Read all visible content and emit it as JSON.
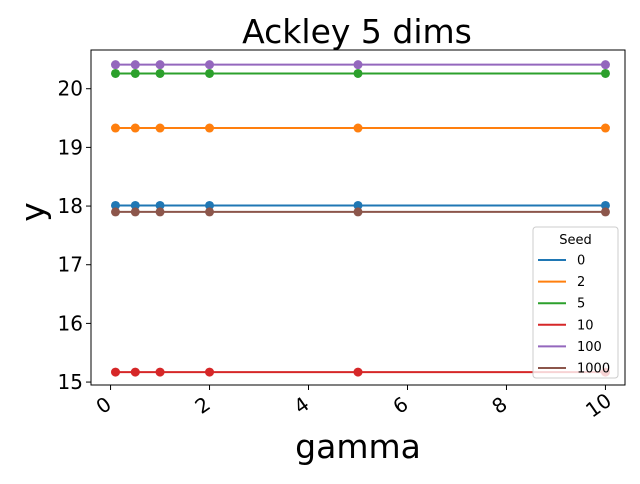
{
  "chart_data": {
    "type": "line",
    "title": "Ackley 5 dims",
    "xlabel": "gamma",
    "ylabel": "y",
    "x": [
      0.1,
      0.5,
      1,
      2,
      5,
      10
    ],
    "xlim": [
      -0.395,
      10.395
    ],
    "ylim": [
      14.95,
      20.66
    ],
    "xticks": [
      0,
      2,
      4,
      6,
      8,
      10
    ],
    "yticks": [
      15,
      16,
      17,
      18,
      19,
      20
    ],
    "grid": false,
    "legend": {
      "title": "Seed",
      "placement": "lower right"
    },
    "series": [
      {
        "name": "0",
        "color": "#1f77b4",
        "values": [
          18.01,
          18.01,
          18.01,
          18.01,
          18.01,
          18.01
        ]
      },
      {
        "name": "2",
        "color": "#ff7f0e",
        "values": [
          19.33,
          19.33,
          19.33,
          19.33,
          19.33,
          19.33
        ]
      },
      {
        "name": "5",
        "color": "#2ca02c",
        "values": [
          20.26,
          20.26,
          20.26,
          20.26,
          20.26,
          20.26
        ]
      },
      {
        "name": "10",
        "color": "#d62728",
        "values": [
          15.17,
          15.17,
          15.17,
          15.17,
          15.17,
          15.17
        ]
      },
      {
        "name": "100",
        "color": "#9467bd",
        "values": [
          20.41,
          20.41,
          20.41,
          20.41,
          20.41,
          20.41
        ]
      },
      {
        "name": "1000",
        "color": "#8c564b",
        "values": [
          17.9,
          17.9,
          17.9,
          17.9,
          17.9,
          17.9
        ]
      }
    ]
  }
}
